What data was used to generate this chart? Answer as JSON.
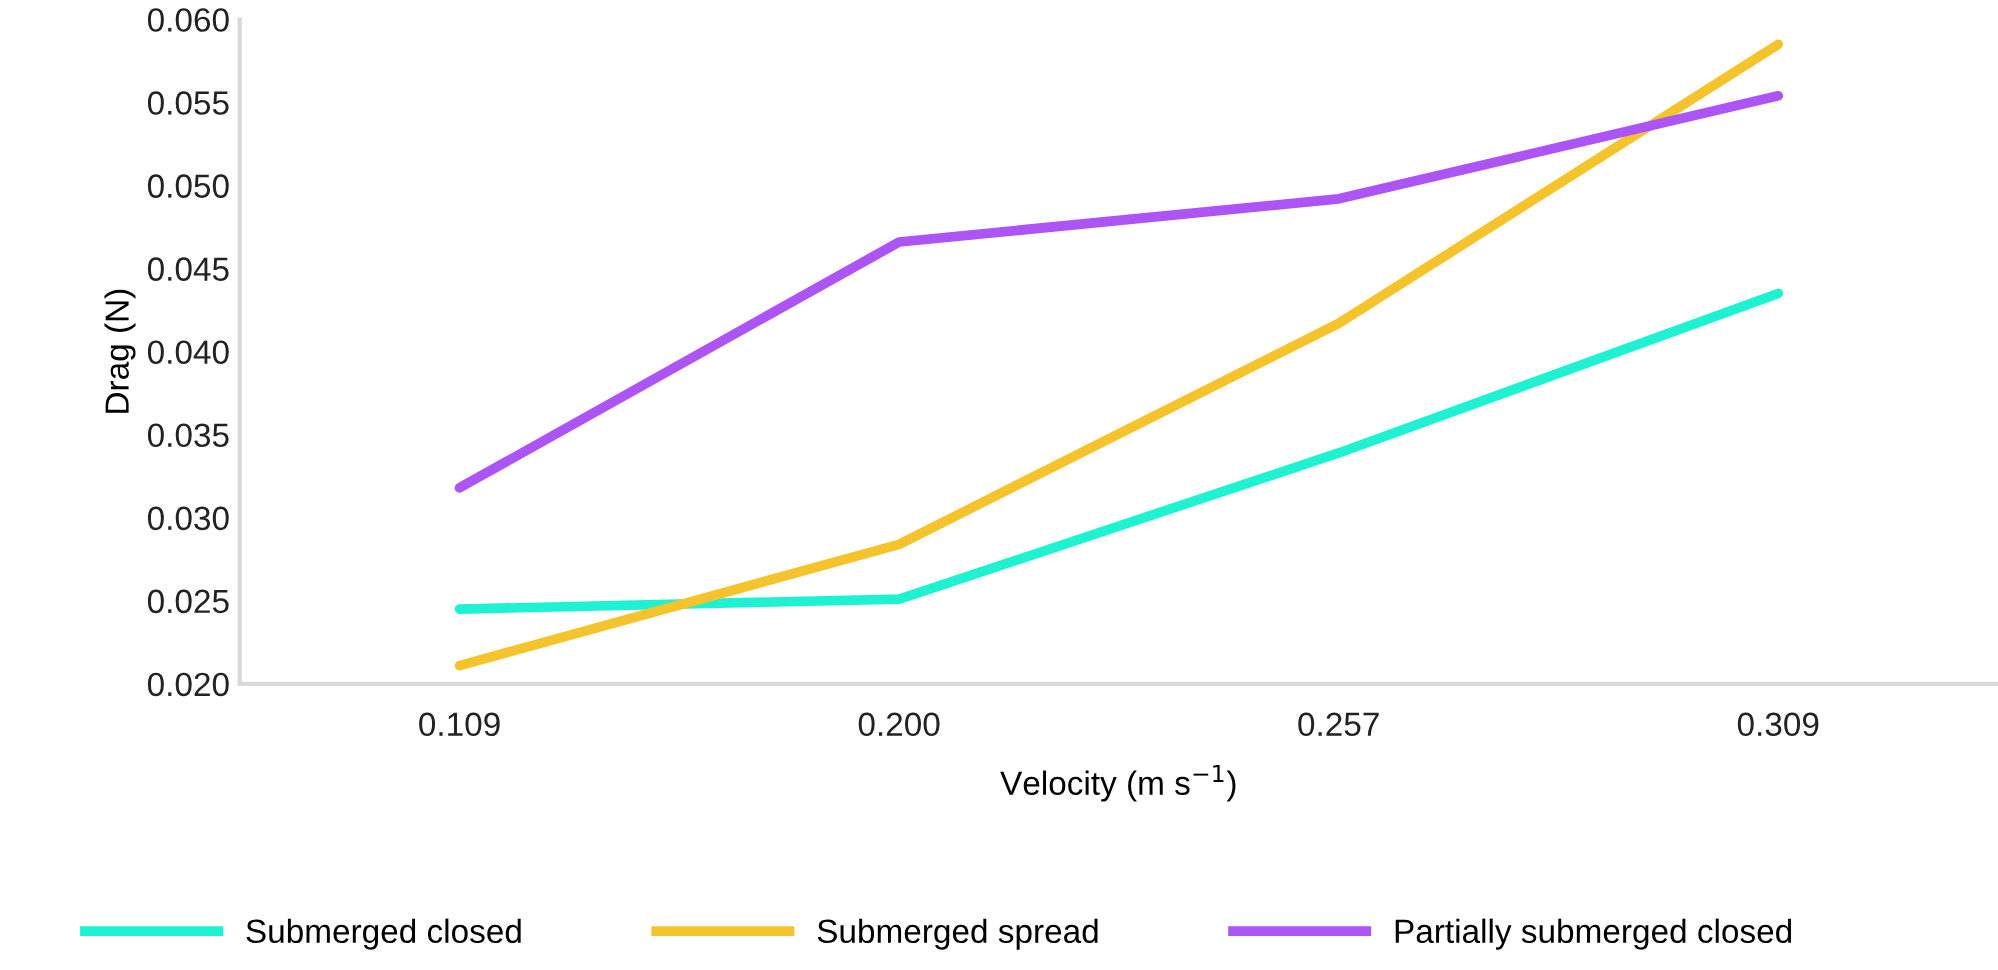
{
  "chart_data": {
    "type": "line",
    "xlabel": "Velocity (m s$^{−1}$)",
    "ylabel": "Drag (N)",
    "categories": [
      "0.109",
      "0.200",
      "0.257",
      "0.309"
    ],
    "series": [
      {
        "name": "Submerged closed",
        "color": "#1ef2d2",
        "values": [
          0.0245,
          0.0251,
          0.0339,
          0.0435
        ]
      },
      {
        "name": "Submerged spread",
        "color": "#f5c42c",
        "values": [
          0.0211,
          0.0284,
          0.0417,
          0.0585
        ]
      },
      {
        "name": "Partially submerged closed",
        "color": "#ac54f5",
        "values": [
          0.0318,
          0.0466,
          0.0492,
          0.0554
        ]
      }
    ],
    "ylim": [
      0.02,
      0.06
    ],
    "yticks": [
      {
        "value": 0.02,
        "label": "0.020"
      },
      {
        "value": 0.025,
        "label": "0.025"
      },
      {
        "value": 0.03,
        "label": "0.030"
      },
      {
        "value": 0.035,
        "label": "0.035"
      },
      {
        "value": 0.04,
        "label": "0.040"
      },
      {
        "value": 0.045,
        "label": "0.045"
      },
      {
        "value": 0.05,
        "label": "0.050"
      },
      {
        "value": 0.055,
        "label": "0.055"
      },
      {
        "value": 0.06,
        "label": "0.060"
      }
    ],
    "grid": false,
    "legend": "bottom",
    "marker": "none",
    "line_style": "solid"
  }
}
